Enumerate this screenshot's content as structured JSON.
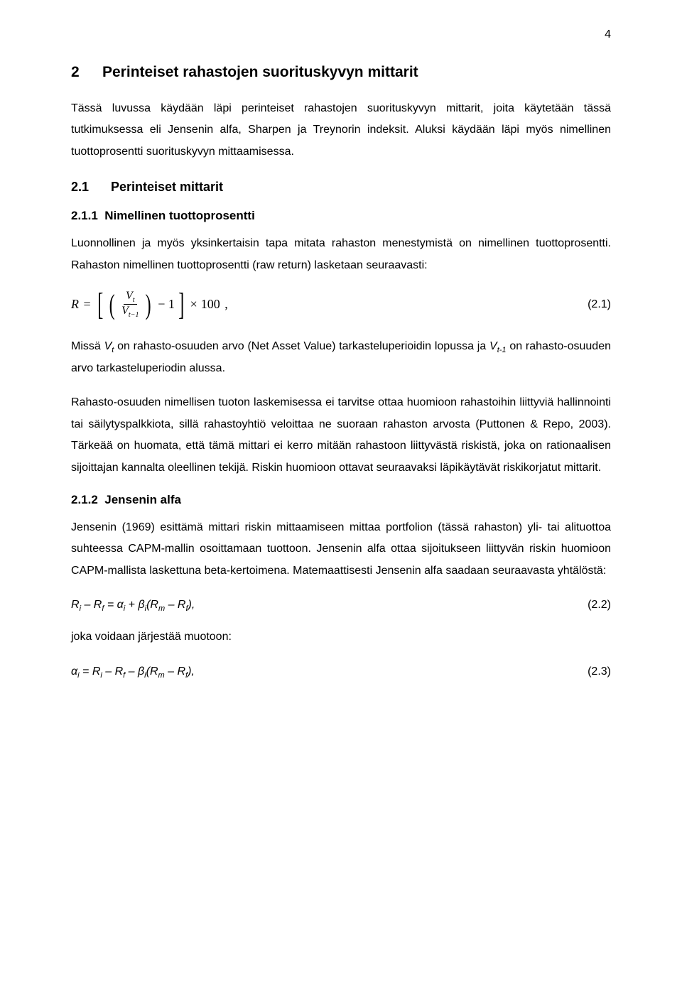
{
  "page_number": "4",
  "chapter": {
    "num": "2",
    "title": "Perinteiset rahastojen suorituskyvyn mittarit"
  },
  "intro": "Tässä luvussa käydään läpi perinteiset rahastojen suorituskyvyn mittarit, joita käytetään tässä tutkimuksessa eli Jensenin alfa, Sharpen ja Treynorin indeksit. Aluksi käydään läpi myös nimellinen tuottoprosentti suorituskyvyn mittaamisessa.",
  "section_2_1": {
    "num": "2.1",
    "title": "Perinteiset mittarit"
  },
  "sub_2_1_1": {
    "num": "2.1.1",
    "title": "Nimellinen tuottoprosentti"
  },
  "p1": "Luonnollinen ja myös yksinkertaisin tapa mitata rahaston menestymistä on nimellinen tuottoprosentti. Rahaston nimellinen tuottoprosentti (raw return) lasketaan seuraavasti:",
  "eq1": {
    "R": "R",
    "Vt": "V",
    "t": "t",
    "Vt1": "V",
    "t1": "t−1",
    "minus1": "− 1",
    "times100": "100",
    "comma": ",",
    "label": "(2.1)"
  },
  "p2_a": "Missä ",
  "p2_vt": "V",
  "p2_vts": "t",
  "p2_b": " on rahasto-osuuden arvo (Net Asset Value) tarkasteluperioidin lopussa ja ",
  "p2_vt1": "V",
  "p2_vt1s": "t-1",
  "p2_c": " on rahasto-osuuden arvo tarkasteluperiodin alussa.",
  "p3": "Rahasto-osuuden nimellisen tuoton laskemisessa ei tarvitse ottaa huomioon rahastoihin liittyviä hallinnointi tai säilytyspalkkiota, sillä rahastoyhtiö veloittaa ne suoraan rahaston arvosta (Puttonen & Repo, 2003). Tärkeää on huomata, että tämä mittari ei kerro mitään rahastoon liittyvästä riskistä, joka on rationaalisen sijoittajan kannalta oleellinen tekijä. Riskin huomioon ottavat seuraavaksi läpikäytävät riskikorjatut mittarit.",
  "sub_2_1_2": {
    "num": "2.1.2",
    "title": "Jensenin alfa"
  },
  "p4": "Jensenin (1969) esittämä mittari riskin mittaamiseen mittaa portfolion (tässä rahaston) yli- tai alituottoa suhteessa CAPM-mallin osoittamaan tuottoon. Jensenin alfa ottaa sijoitukseen liittyvän riskin huomioon CAPM-mallista laskettuna beta-kertoimena. Matemaattisesti Jensenin alfa saadaan seuraavasta yhtälöstä:",
  "eq2": {
    "formula": "Rᵢ – R_f = αᵢ + βᵢ(Rₘ – R_f),",
    "label": "(2.2)"
  },
  "p5": "joka voidaan järjestää muotoon:",
  "eq3": {
    "formula": "αᵢ = Rᵢ – R_f – βᵢ(Rₘ – R_f),",
    "label": "(2.3)"
  }
}
